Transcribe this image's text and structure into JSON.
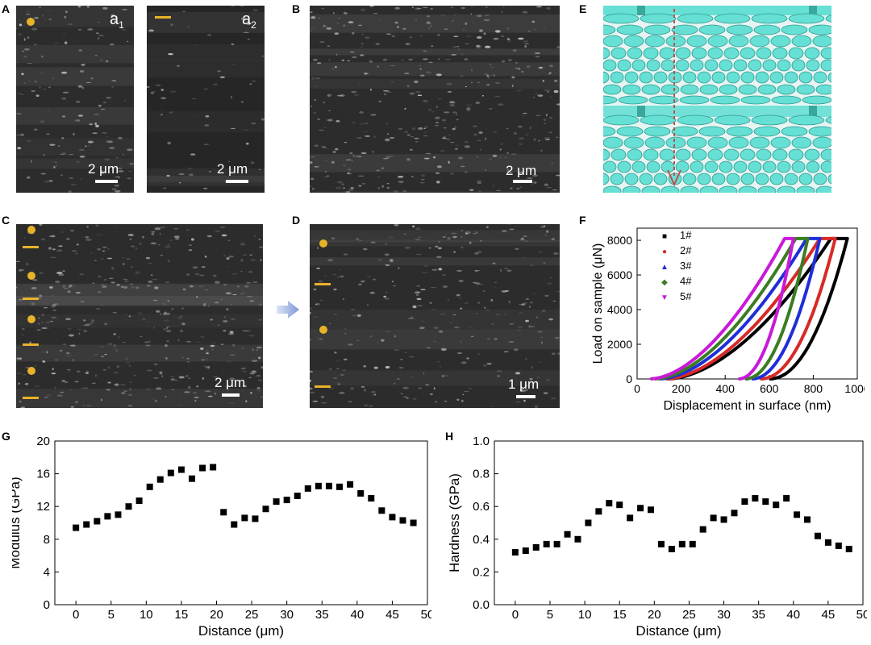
{
  "panels": {
    "A": {
      "label": "A",
      "sub1_letter": "a",
      "sub1_index": "1",
      "sub2_letter": "a",
      "sub2_index": "2",
      "scale1": "2 μm",
      "scale2": "2 μm"
    },
    "B": {
      "label": "B",
      "scale": "2 μm"
    },
    "C": {
      "label": "C",
      "scale": "2 μm"
    },
    "D": {
      "label": "D",
      "scale": "1 μm"
    },
    "E": {
      "label": "E"
    },
    "F": {
      "label": "F"
    },
    "G": {
      "label": "G"
    },
    "H": {
      "label": "H"
    }
  },
  "colors": {
    "marker": "#e8b22a",
    "fiber": "#66dfd4",
    "arrow_red": "#c0504d"
  },
  "chart_data": [
    {
      "id": "F",
      "type": "line",
      "title": "",
      "xlabel": "Displacement in surface (nm)",
      "ylabel": "Load on sample (μN)",
      "xlim": [
        0,
        1000
      ],
      "ylim": [
        0,
        8700
      ],
      "xticks": [
        "0",
        "200",
        "400",
        "600",
        "800",
        "1000"
      ],
      "yticks": [
        "0",
        "2000",
        "4000",
        "6000",
        "8000"
      ],
      "legend_position": "top-left",
      "series": [
        {
          "name": "1#",
          "color": "#000000",
          "symbol": "■",
          "start": 140,
          "peak_x": 880,
          "unload_end": 600,
          "max_x": 955,
          "peak_load": 8100
        },
        {
          "name": "2#",
          "color": "#d62a28",
          "symbol": "●",
          "start": 130,
          "peak_x": 830,
          "unload_end": 560,
          "max_x": 900,
          "peak_load": 8100
        },
        {
          "name": "3#",
          "color": "#1f2ed8",
          "symbol": "▲",
          "start": 100,
          "peak_x": 770,
          "unload_end": 520,
          "max_x": 830,
          "peak_load": 8100
        },
        {
          "name": "4#",
          "color": "#3a7d22",
          "symbol": "◆",
          "start": 80,
          "peak_x": 720,
          "unload_end": 490,
          "max_x": 775,
          "peak_load": 8100
        },
        {
          "name": "5#",
          "color": "#c81ad8",
          "symbol": "▼",
          "start": 60,
          "peak_x": 670,
          "unload_end": 460,
          "max_x": 710,
          "peak_load": 8100
        }
      ]
    },
    {
      "id": "G",
      "type": "scatter",
      "title": "",
      "xlabel": "Distance (μm)",
      "ylabel": "Modulus (GPa)",
      "xlim": [
        -3,
        50
      ],
      "ylim": [
        0,
        20
      ],
      "xticks": [
        "0",
        "5",
        "10",
        "15",
        "20",
        "25",
        "30",
        "35",
        "40",
        "45",
        "50"
      ],
      "yticks": [
        "0",
        "4",
        "8",
        "12",
        "16",
        "20"
      ],
      "x": [
        0,
        1.5,
        3,
        4.5,
        6,
        7.5,
        9,
        10.5,
        12,
        13.5,
        15,
        16.5,
        18,
        19.5,
        21,
        22.5,
        24,
        25.5,
        27,
        28.5,
        30,
        31.5,
        33,
        34.5,
        36,
        37.5,
        39,
        40.5,
        42,
        43.5,
        45,
        46.5,
        48
      ],
      "y": [
        9.4,
        9.8,
        10.2,
        10.8,
        11.0,
        12.0,
        12.7,
        14.4,
        15.3,
        16.1,
        16.5,
        15.4,
        16.7,
        16.8,
        11.3,
        9.8,
        10.6,
        10.5,
        11.7,
        12.6,
        12.8,
        13.3,
        14.2,
        14.5,
        14.5,
        14.4,
        14.7,
        13.6,
        13.0,
        11.5,
        10.7,
        10.3,
        10.0
      ]
    },
    {
      "id": "H",
      "type": "scatter",
      "title": "",
      "xlabel": "Distance (μm)",
      "ylabel": "Hardness (GPa)",
      "xlim": [
        -3,
        50
      ],
      "ylim": [
        0,
        1.0
      ],
      "xticks": [
        "0",
        "5",
        "10",
        "15",
        "20",
        "25",
        "30",
        "35",
        "40",
        "45",
        "50"
      ],
      "yticks": [
        "0.0",
        "0.2",
        "0.4",
        "0.6",
        "0.8",
        "1.0"
      ],
      "x": [
        0,
        1.5,
        3,
        4.5,
        6,
        7.5,
        9,
        10.5,
        12,
        13.5,
        15,
        16.5,
        18,
        19.5,
        21,
        22.5,
        24,
        25.5,
        27,
        28.5,
        30,
        31.5,
        33,
        34.5,
        36,
        37.5,
        39,
        40.5,
        42,
        43.5,
        45,
        46.5,
        48
      ],
      "y": [
        0.32,
        0.33,
        0.35,
        0.37,
        0.37,
        0.43,
        0.4,
        0.5,
        0.57,
        0.62,
        0.61,
        0.53,
        0.59,
        0.58,
        0.37,
        0.34,
        0.37,
        0.37,
        0.46,
        0.53,
        0.52,
        0.56,
        0.63,
        0.65,
        0.63,
        0.61,
        0.65,
        0.55,
        0.52,
        0.42,
        0.38,
        0.36,
        0.34
      ]
    }
  ]
}
